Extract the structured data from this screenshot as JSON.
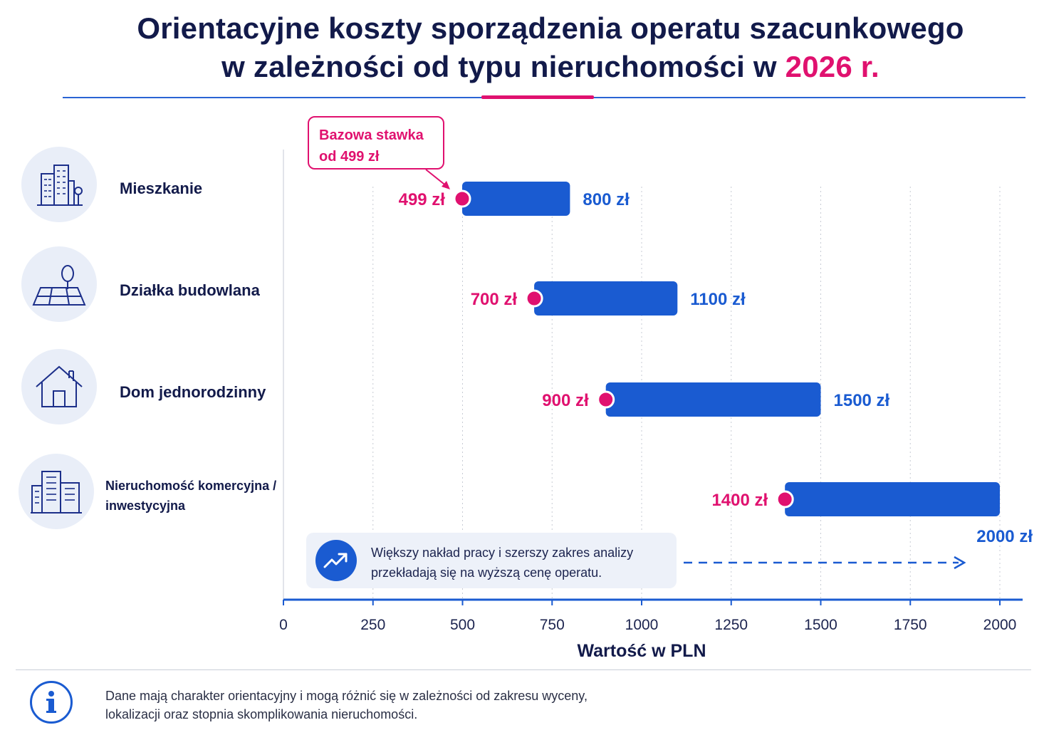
{
  "title": {
    "line1": "Orientacyjne koszty sporządzenia operatu szacunkowego",
    "line2_prefix": "w zależności od typu nieruchomości w",
    "line2_accent": "2026 r."
  },
  "callout": {
    "line1": "Bazowa stawka",
    "line2": "od 499 zł"
  },
  "note": {
    "line1": "Większy nakład pracy i szerszy zakres analizy",
    "line2": "przekładają się na wyższą cenę operatu.",
    "icon": "trend-up-icon"
  },
  "footer": {
    "line1": "Dane mają charakter orientacyjny i mogą różnić się w zależności od zakresu wyceny,",
    "line2": "lokalizacji oraz stopnia skomplikowania nieruchomości.",
    "icon": "info-icon"
  },
  "colors": {
    "navy": "#121a4a",
    "accent": "#e0116f",
    "bar": "#1a5bd1",
    "icon_bg": "#e9eef8"
  },
  "chart_data": {
    "type": "bar",
    "orientation": "horizontal-range",
    "title": "Orientacyjne koszty sporządzenia operatu szacunkowego w zależności od typu nieruchomości w 2026 r.",
    "xlabel": "Wartość w PLN",
    "xlim": [
      0,
      2000
    ],
    "xticks": [
      0,
      250,
      500,
      750,
      1000,
      1250,
      1500,
      1750,
      2000
    ],
    "grid": "vertical-dotted",
    "categories": [
      {
        "label": "Mieszkanie",
        "icon": "apartment-building-icon"
      },
      {
        "label": "Działka budowlana",
        "icon": "land-plot-tree-icon"
      },
      {
        "label": "Dom jednorodzinny",
        "icon": "house-icon"
      },
      {
        "label": "Nieruchomość komercyjna /",
        "label2": "inwestycyjna",
        "icon": "office-buildings-icon"
      }
    ],
    "min_values": [
      499,
      700,
      900,
      1400
    ],
    "max_values": [
      800,
      1100,
      1500,
      2000
    ],
    "min_labels": [
      "499 zł",
      "700 zł",
      "900 zł",
      "1400 zł"
    ],
    "max_labels": [
      "800 zł",
      "1100 zł",
      "1500 zł",
      "2000 zł"
    ]
  }
}
